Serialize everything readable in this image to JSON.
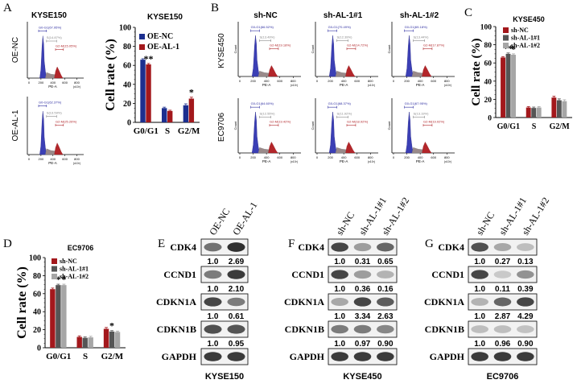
{
  "panel_letters": [
    "A",
    "B",
    "C",
    "D",
    "E",
    "F",
    "G"
  ],
  "flow": {
    "panel_a": {
      "title": "KYSE150",
      "row_labels": [
        "OE-NC",
        "OE-AL-1"
      ],
      "gates": [
        [
          "G0-G1(67.95%)",
          "S(14.87%)",
          "G2-M(15.05%)"
        ],
        [
          "G0-G1(62.37%)",
          "S(13.59%)",
          "G2-M(25.26%)"
        ]
      ]
    },
    "panel_b": {
      "col_labels": [
        "sh-NC",
        "sh-AL-1#1",
        "sh-AL-1#2"
      ],
      "row_labels": [
        "KYSE450",
        "EC9706"
      ],
      "gates": [
        [
          [
            "G0-G1(66.52%)",
            "S(13.49%)",
            "G2-M(19.18%)"
          ],
          [
            "G0-G1(70.49%)",
            "S(12.39%)",
            "G2-M(14.72%)"
          ],
          [
            "G0-G1(69.18%)",
            "S(13.44%)",
            "G2-M(17.87%)"
          ]
        ],
        [
          [
            "G0-G1(64.60%)",
            "S(12.55%)",
            "G2-M(19.42%)"
          ],
          [
            "G0-G1(68.37%)",
            "S(11.92%)",
            "G2-M(18.92%)"
          ],
          [
            "G0-G1(67.95%)",
            "S(13.19%)",
            "G2-M(19.02%)"
          ]
        ]
      ]
    },
    "axis_x_label": "PE-A",
    "axis_y_label": "Count",
    "axis_exp": "(x10³)",
    "x_ticks": [
      "0",
      "200",
      "400",
      "600",
      "800"
    ]
  },
  "chart_data": [
    {
      "panel": "A",
      "type": "bar",
      "title": "KYSE150",
      "ylabel": "Cell rate (%)",
      "xlabel": "",
      "ylim": [
        0,
        100
      ],
      "yticks": [
        "0",
        "20",
        "40",
        "60",
        "80",
        "100"
      ],
      "categories": [
        "G0/G1",
        "S",
        "G2/M"
      ],
      "legend": "top-left",
      "series": [
        {
          "name": "OE-NC",
          "color": "#1c2f8f",
          "values": [
            66,
            15,
            18
          ],
          "errors": [
            1,
            1,
            1.5
          ]
        },
        {
          "name": "OE-AL-1",
          "color": "#a3181c",
          "values": [
            61,
            12,
            25
          ],
          "errors": [
            1,
            0.8,
            1.5
          ]
        }
      ],
      "annotations": [
        {
          "category": "G0/G1",
          "series": 1,
          "text": "**"
        },
        {
          "category": "G2/M",
          "series": 1,
          "text": "*"
        }
      ]
    },
    {
      "panel": "C",
      "type": "bar",
      "title": "KYSE450",
      "ylabel": "Cell rate (%)",
      "xlabel": "",
      "ylim": [
        0,
        100
      ],
      "yticks": [
        "0",
        "20",
        "40",
        "60",
        "80",
        "100"
      ],
      "categories": [
        "G0/G1",
        "S",
        "G2/M"
      ],
      "legend": "top-left",
      "series": [
        {
          "name": "sh-NC",
          "color": "#a3181c",
          "values": [
            66,
            11,
            22
          ],
          "errors": [
            1,
            1,
            1.5
          ]
        },
        {
          "name": "sh-AL-1#1",
          "color": "#555555",
          "values": [
            70,
            10.5,
            19
          ],
          "errors": [
            1,
            1,
            1.5
          ]
        },
        {
          "name": "sh-AL-1#2",
          "color": "#a6a6a6",
          "values": [
            69,
            11,
            18
          ],
          "errors": [
            1,
            1,
            1.5
          ]
        }
      ],
      "annotations": [
        {
          "category": "G0/G1",
          "series": 1,
          "text": "**"
        },
        {
          "category": "G0/G1",
          "series": 2,
          "text": "*"
        }
      ]
    },
    {
      "panel": "D",
      "type": "bar",
      "title": "EC9706",
      "ylabel": "Cell rate (%)",
      "xlabel": "",
      "ylim": [
        0,
        100
      ],
      "yticks": [
        "0",
        "20",
        "40",
        "60",
        "80",
        "100"
      ],
      "categories": [
        "G0/G1",
        "S",
        "G2/M"
      ],
      "legend": "top-left",
      "series": [
        {
          "name": "sh-NC",
          "color": "#a3181c",
          "values": [
            65,
            12,
            21
          ],
          "errors": [
            1.2,
            1.2,
            1.5
          ]
        },
        {
          "name": "sh-AL-1#1",
          "color": "#555555",
          "values": [
            69.5,
            11,
            18
          ],
          "errors": [
            1,
            1,
            1
          ]
        },
        {
          "name": "sh-AL-1#2",
          "color": "#a6a6a6",
          "values": [
            69.5,
            11.5,
            17.5
          ],
          "errors": [
            1,
            1.2,
            1
          ]
        }
      ],
      "annotations": [
        {
          "category": "G0/G1",
          "series": 1,
          "text": "*"
        },
        {
          "category": "G0/G1",
          "series": 2,
          "text": "*"
        },
        {
          "category": "G2/M",
          "series": 1,
          "text": "*"
        }
      ]
    }
  ],
  "westerns": [
    {
      "panel": "E",
      "lanes": [
        "OE-NC",
        "OE-AL-1"
      ],
      "cell_line": "KYSE150",
      "proteins": [
        "CDK4",
        "CCND1",
        "CDKN1A",
        "CDKN1B",
        "GAPDH"
      ],
      "ratios": [
        [
          "1.0",
          "2.69"
        ],
        [
          "1.0",
          "2.10"
        ],
        [
          "1.0",
          "0.61"
        ],
        [
          "1.0",
          "0.95"
        ]
      ],
      "intensity": [
        [
          0.65,
          0.95
        ],
        [
          0.6,
          0.9
        ],
        [
          0.85,
          0.6
        ],
        [
          0.8,
          0.78
        ],
        [
          0.9,
          0.9
        ]
      ]
    },
    {
      "panel": "F",
      "lanes": [
        "sh-NC",
        "sh-AL-1#1",
        "sh-AL-1#2"
      ],
      "cell_line": "KYSE450",
      "proteins": [
        "CDK4",
        "CCND1",
        "CDKN1A",
        "CDKN1B",
        "GAPDH"
      ],
      "ratios": [
        [
          "1.0",
          "0.31",
          "0.65"
        ],
        [
          "1.0",
          "0.36",
          "0.16"
        ],
        [
          "1.0",
          "3.34",
          "2.63"
        ],
        [
          "1.0",
          "0.97",
          "0.90"
        ]
      ],
      "intensity": [
        [
          0.85,
          0.45,
          0.7
        ],
        [
          0.85,
          0.45,
          0.35
        ],
        [
          0.4,
          0.85,
          0.75
        ],
        [
          0.6,
          0.6,
          0.55
        ],
        [
          0.9,
          0.9,
          0.9
        ]
      ]
    },
    {
      "panel": "G",
      "lanes": [
        "sh-NC",
        "sh-AL-1#1",
        "sh-AL-1#2"
      ],
      "cell_line": "EC9706",
      "proteins": [
        "CDK4",
        "CCND1",
        "CDKN1A",
        "CDKN1B",
        "GAPDH"
      ],
      "ratios": [
        [
          "1.0",
          "0.27",
          "0.13"
        ],
        [
          "1.0",
          "0.11",
          "0.39"
        ],
        [
          "1.0",
          "2.87",
          "4.29"
        ],
        [
          "1.0",
          "0.96",
          "0.90"
        ]
      ],
      "intensity": [
        [
          0.8,
          0.4,
          0.3
        ],
        [
          0.85,
          0.25,
          0.5
        ],
        [
          0.35,
          0.7,
          0.85
        ],
        [
          0.3,
          0.3,
          0.28
        ],
        [
          0.9,
          0.9,
          0.9
        ]
      ]
    }
  ]
}
